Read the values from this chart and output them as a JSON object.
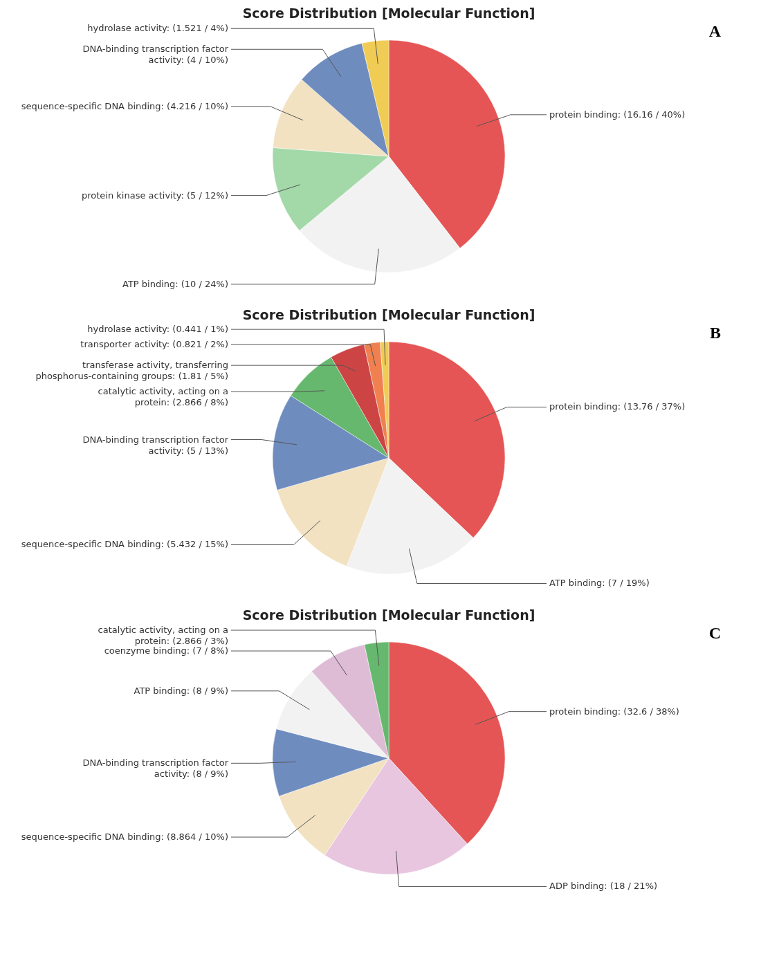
{
  "chart_data": [
    {
      "type": "pie",
      "title": "Score Distribution [Molecular Function]",
      "annotations": [
        "A"
      ],
      "categories": [
        "protein binding",
        "ATP binding",
        "protein kinase activity",
        "sequence-specific DNA binding",
        "DNA-binding transcription factor activity",
        "hydrolase activity"
      ],
      "values": [
        16.16,
        10,
        5,
        4.216,
        4,
        1.521
      ],
      "value_labels": [
        "(16.16 / 40%)",
        "(10 / 24%)",
        "(5 / 12%)",
        "(4.216 / 10%)",
        "(4 / 10%)",
        "(1.521 / 4%)"
      ],
      "colors": [
        "#e65555",
        "#f2f2f2",
        "#a3d9a8",
        "#f2e2c2",
        "#6f8cbf",
        "#f0cc55"
      ]
    },
    {
      "type": "pie",
      "title": "Score Distribution [Molecular Function]",
      "annotations": [
        "B"
      ],
      "categories": [
        "protein binding",
        "ATP binding",
        "sequence-specific DNA binding",
        "DNA-binding transcription factor activity",
        "catalytic activity, acting on a protein",
        "transferase activity, transferring phosphorus-containing groups",
        "transporter activity",
        "hydrolase activity"
      ],
      "values": [
        13.76,
        7,
        5.432,
        5,
        2.866,
        1.81,
        0.821,
        0.441
      ],
      "value_labels": [
        "(13.76 / 37%)",
        "(7 / 19%)",
        "(5.432 / 15%)",
        "(5 / 13%)",
        "(2.866 / 8%)",
        "(1.81 / 5%)",
        "(0.821 / 2%)",
        "(0.441 / 1%)"
      ],
      "colors": [
        "#e65555",
        "#f2f2f2",
        "#f2e2c2",
        "#6f8cbf",
        "#66b86e",
        "#cc4444",
        "#f08050",
        "#f0cc55"
      ]
    },
    {
      "type": "pie",
      "title": "Score Distribution [Molecular Function]",
      "annotations": [
        "C"
      ],
      "categories": [
        "protein binding",
        "ADP binding",
        "sequence-specific DNA binding",
        "DNA-binding transcription factor activity",
        "ATP binding",
        "coenzyme binding",
        "catalytic activity, acting on a protein"
      ],
      "values": [
        32.6,
        18,
        8.864,
        8,
        8,
        7,
        2.866
      ],
      "value_labels": [
        "(32.6 / 38%)",
        "(18 / 21%)",
        "(8.864 / 10%)",
        "(8 / 9%)",
        "(8 / 9%)",
        "(7 / 8%)",
        "(2.866 / 3%)"
      ],
      "colors": [
        "#e65555",
        "#e8c6e0",
        "#f2e2c2",
        "#6f8cbf",
        "#f2f2f2",
        "#dfbcd6",
        "#66b86e"
      ]
    }
  ]
}
